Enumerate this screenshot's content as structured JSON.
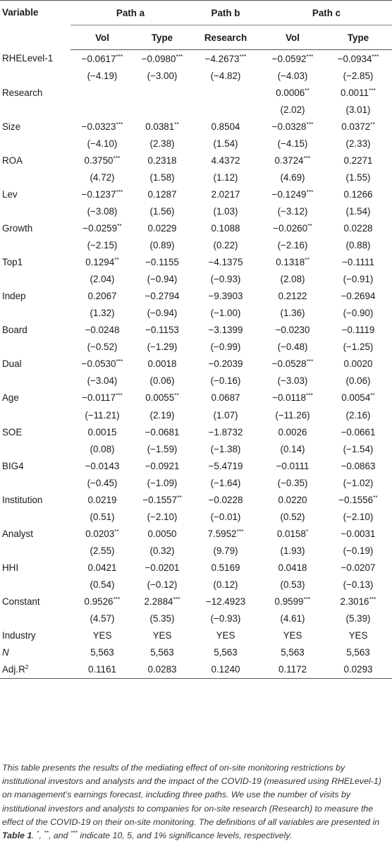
{
  "header": {
    "variable_label": "Variable",
    "groups": [
      {
        "label": "Path a",
        "cols": [
          "Vol",
          "Type"
        ]
      },
      {
        "label": "Path b",
        "cols": [
          "Research"
        ]
      },
      {
        "label": "Path c",
        "cols": [
          "Vol",
          "Type"
        ]
      }
    ]
  },
  "rows": [
    {
      "name": "RHELevel-1",
      "vals": [
        "−0.0617",
        "−0.0980",
        "−4.2673",
        "−0.0592",
        "−0.0934"
      ],
      "stars": [
        "***",
        "***",
        "***",
        "***",
        "***"
      ]
    },
    {
      "name": "",
      "vals": [
        "(−4.19)",
        "(−3.00)",
        "(−4.82)",
        "(−4.03)",
        "(−2.85)"
      ],
      "stars": [
        "",
        "",
        "",
        "",
        ""
      ]
    },
    {
      "name": "Research",
      "vals": [
        "",
        "",
        "",
        "0.0006",
        "0.0011"
      ],
      "stars": [
        "",
        "",
        "",
        "**",
        "***"
      ]
    },
    {
      "name": "",
      "vals": [
        "",
        "",
        "",
        "(2.02)",
        "(3.01)"
      ],
      "stars": [
        "",
        "",
        "",
        "",
        ""
      ]
    },
    {
      "name": "Size",
      "vals": [
        "−0.0323",
        "0.0381",
        "0.8504",
        "−0.0328",
        "0.0372"
      ],
      "stars": [
        "***",
        "**",
        "",
        "***",
        "**"
      ]
    },
    {
      "name": "",
      "vals": [
        "(−4.10)",
        "(2.38)",
        "(1.54)",
        "(−4.15)",
        "(2.33)"
      ],
      "stars": [
        "",
        "",
        "",
        "",
        ""
      ]
    },
    {
      "name": "ROA",
      "vals": [
        "0.3750",
        "0.2318",
        "4.4372",
        "0.3724",
        "0.2271"
      ],
      "stars": [
        "***",
        "",
        "",
        "***",
        ""
      ]
    },
    {
      "name": "",
      "vals": [
        "(4.72)",
        "(1.58)",
        "(1.12)",
        "(4.69)",
        "(1.55)"
      ],
      "stars": [
        "",
        "",
        "",
        "",
        ""
      ]
    },
    {
      "name": "Lev",
      "vals": [
        "−0.1237",
        "0.1287",
        "2.0217",
        "−0.1249",
        "0.1266"
      ],
      "stars": [
        "***",
        "",
        "",
        "***",
        ""
      ]
    },
    {
      "name": "",
      "vals": [
        "(−3.08)",
        "(1.56)",
        "(1.03)",
        "(−3.12)",
        "(1.54)"
      ],
      "stars": [
        "",
        "",
        "",
        "",
        ""
      ]
    },
    {
      "name": "Growth",
      "vals": [
        "−0.0259",
        "0.0229",
        "0.1088",
        "−0.0260",
        "0.0228"
      ],
      "stars": [
        "**",
        "",
        "",
        "**",
        ""
      ]
    },
    {
      "name": "",
      "vals": [
        "(−2.15)",
        "(0.89)",
        "(0.22)",
        "(−2.16)",
        "(0.88)"
      ],
      "stars": [
        "",
        "",
        "",
        "",
        ""
      ]
    },
    {
      "name": "Top1",
      "vals": [
        "0.1294",
        "−0.1155",
        "−4.1375",
        "0.1318",
        "−0.1111"
      ],
      "stars": [
        "**",
        "",
        "",
        "**",
        ""
      ]
    },
    {
      "name": "",
      "vals": [
        "(2.04)",
        "(−0.94)",
        "(−0.93)",
        "(2.08)",
        "(−0.91)"
      ],
      "stars": [
        "",
        "",
        "",
        "",
        ""
      ]
    },
    {
      "name": "Indep",
      "vals": [
        "0.2067",
        "−0.2794",
        "−9.3903",
        "0.2122",
        "−0.2694"
      ],
      "stars": [
        "",
        "",
        "",
        "",
        ""
      ]
    },
    {
      "name": "",
      "vals": [
        "(1.32)",
        "(−0.94)",
        "(−1.00)",
        "(1.36)",
        "(−0.90)"
      ],
      "stars": [
        "",
        "",
        "",
        "",
        ""
      ]
    },
    {
      "name": "Board",
      "vals": [
        "−0.0248",
        "−0.1153",
        "−3.1399",
        "−0.0230",
        "−0.1119"
      ],
      "stars": [
        "",
        "",
        "",
        "",
        ""
      ]
    },
    {
      "name": "",
      "vals": [
        "(−0.52)",
        "(−1.29)",
        "(−0.99)",
        "(−0.48)",
        "(−1.25)"
      ],
      "stars": [
        "",
        "",
        "",
        "",
        ""
      ]
    },
    {
      "name": "Dual",
      "vals": [
        "−0.0530",
        "0.0018",
        "−0.2039",
        "−0.0528",
        "0.0020"
      ],
      "stars": [
        "***",
        "",
        "",
        "***",
        ""
      ]
    },
    {
      "name": "",
      "vals": [
        "(−3.04)",
        "(0.06)",
        "(−0.16)",
        "(−3.03)",
        "(0.06)"
      ],
      "stars": [
        "",
        "",
        "",
        "",
        ""
      ]
    },
    {
      "name": "Age",
      "vals": [
        "−0.0117",
        "0.0055",
        "0.0687",
        "−0.0118",
        "0.0054"
      ],
      "stars": [
        "***",
        "**",
        "",
        "***",
        "**"
      ]
    },
    {
      "name": "",
      "vals": [
        "(−11.21)",
        "(2.19)",
        "(1.07)",
        "(−11.26)",
        "(2.16)"
      ],
      "stars": [
        "",
        "",
        "",
        "",
        ""
      ]
    },
    {
      "name": "SOE",
      "vals": [
        "0.0015",
        "−0.0681",
        "−1.8732",
        "0.0026",
        "−0.0661"
      ],
      "stars": [
        "",
        "",
        "",
        "",
        ""
      ]
    },
    {
      "name": "",
      "vals": [
        "(0.08)",
        "(−1.59)",
        "(−1.38)",
        "(0.14)",
        "(−1.54)"
      ],
      "stars": [
        "",
        "",
        "",
        "",
        ""
      ]
    },
    {
      "name": "BIG4",
      "vals": [
        "−0.0143",
        "−0.0921",
        "−5.4719",
        "−0.0111",
        "−0.0863"
      ],
      "stars": [
        "",
        "",
        "",
        "",
        ""
      ]
    },
    {
      "name": "",
      "vals": [
        "(−0.45)",
        "(−1.09)",
        "(−1.64)",
        "(−0.35)",
        "(−1.02)"
      ],
      "stars": [
        "",
        "",
        "",
        "",
        ""
      ]
    },
    {
      "name": "Institution",
      "vals": [
        "0.0219",
        "−0.1557",
        "−0.0228",
        "0.0220",
        "−0.1556"
      ],
      "stars": [
        "",
        "**",
        "",
        "",
        "**"
      ]
    },
    {
      "name": "",
      "vals": [
        "(0.51)",
        "(−2.10)",
        "(−0.01)",
        "(0.52)",
        "(−2.10)"
      ],
      "stars": [
        "",
        "",
        "",
        "",
        ""
      ]
    },
    {
      "name": "Analyst",
      "vals": [
        "0.0203",
        "0.0050",
        "7.5952",
        "0.0158",
        "−0.0031"
      ],
      "stars": [
        "**",
        "",
        "***",
        "*",
        ""
      ]
    },
    {
      "name": "",
      "vals": [
        "(2.55)",
        "(0.32)",
        "(9.79)",
        "(1.93)",
        "(−0.19)"
      ],
      "stars": [
        "",
        "",
        "",
        "",
        ""
      ]
    },
    {
      "name": "HHI",
      "vals": [
        "0.0421",
        "−0.0201",
        "0.5169",
        "0.0418",
        "−0.0207"
      ],
      "stars": [
        "",
        "",
        "",
        "",
        ""
      ]
    },
    {
      "name": "",
      "vals": [
        "(0.54)",
        "(−0.12)",
        "(0.12)",
        "(0.53)",
        "(−0.13)"
      ],
      "stars": [
        "",
        "",
        "",
        "",
        ""
      ]
    },
    {
      "name": "Constant",
      "vals": [
        "0.9526",
        "2.2884",
        "−12.4923",
        "0.9599",
        "2.3016"
      ],
      "stars": [
        "***",
        "***",
        "",
        "***",
        "***"
      ]
    },
    {
      "name": "",
      "vals": [
        "(4.57)",
        "(5.35)",
        "(−0.93)",
        "(4.61)",
        "(5.39)"
      ],
      "stars": [
        "",
        "",
        "",
        "",
        ""
      ]
    },
    {
      "name": "Industry",
      "vals": [
        "YES",
        "YES",
        "YES",
        "YES",
        "YES"
      ],
      "stars": [
        "",
        "",
        "",
        "",
        ""
      ]
    },
    {
      "name": "N",
      "italic": true,
      "vals": [
        "5,563",
        "5,563",
        "5,563",
        "5,563",
        "5,563"
      ],
      "stars": [
        "",
        "",
        "",
        "",
        ""
      ]
    },
    {
      "name": "Adj.R",
      "sup": "2",
      "vals": [
        "0.1161",
        "0.0283",
        "0.1240",
        "0.1172",
        "0.0293"
      ],
      "stars": [
        "",
        "",
        "",
        "",
        ""
      ]
    }
  ],
  "note": {
    "part1": "This table presents the results of the mediating effect of on-site monitoring restrictions by institutional investors and analysts and the impact of the COVID-19 (measured using RHELevel-1) on management’s earnings forecast, including three paths. We use the number of visits by institutional investors and analysts to companies for on-site research (Research) to measure the effect of the COVID-19 on their on-site monitoring. The definitions of all variables are presented in ",
    "table_ref": "Table 1",
    "part2": ". ",
    "s1": "*",
    "part3": ", ",
    "s2": "**",
    "part4": ", and ",
    "s3": "***",
    "part5": " indicate 10, 5, and 1% significance levels, respectively."
  }
}
